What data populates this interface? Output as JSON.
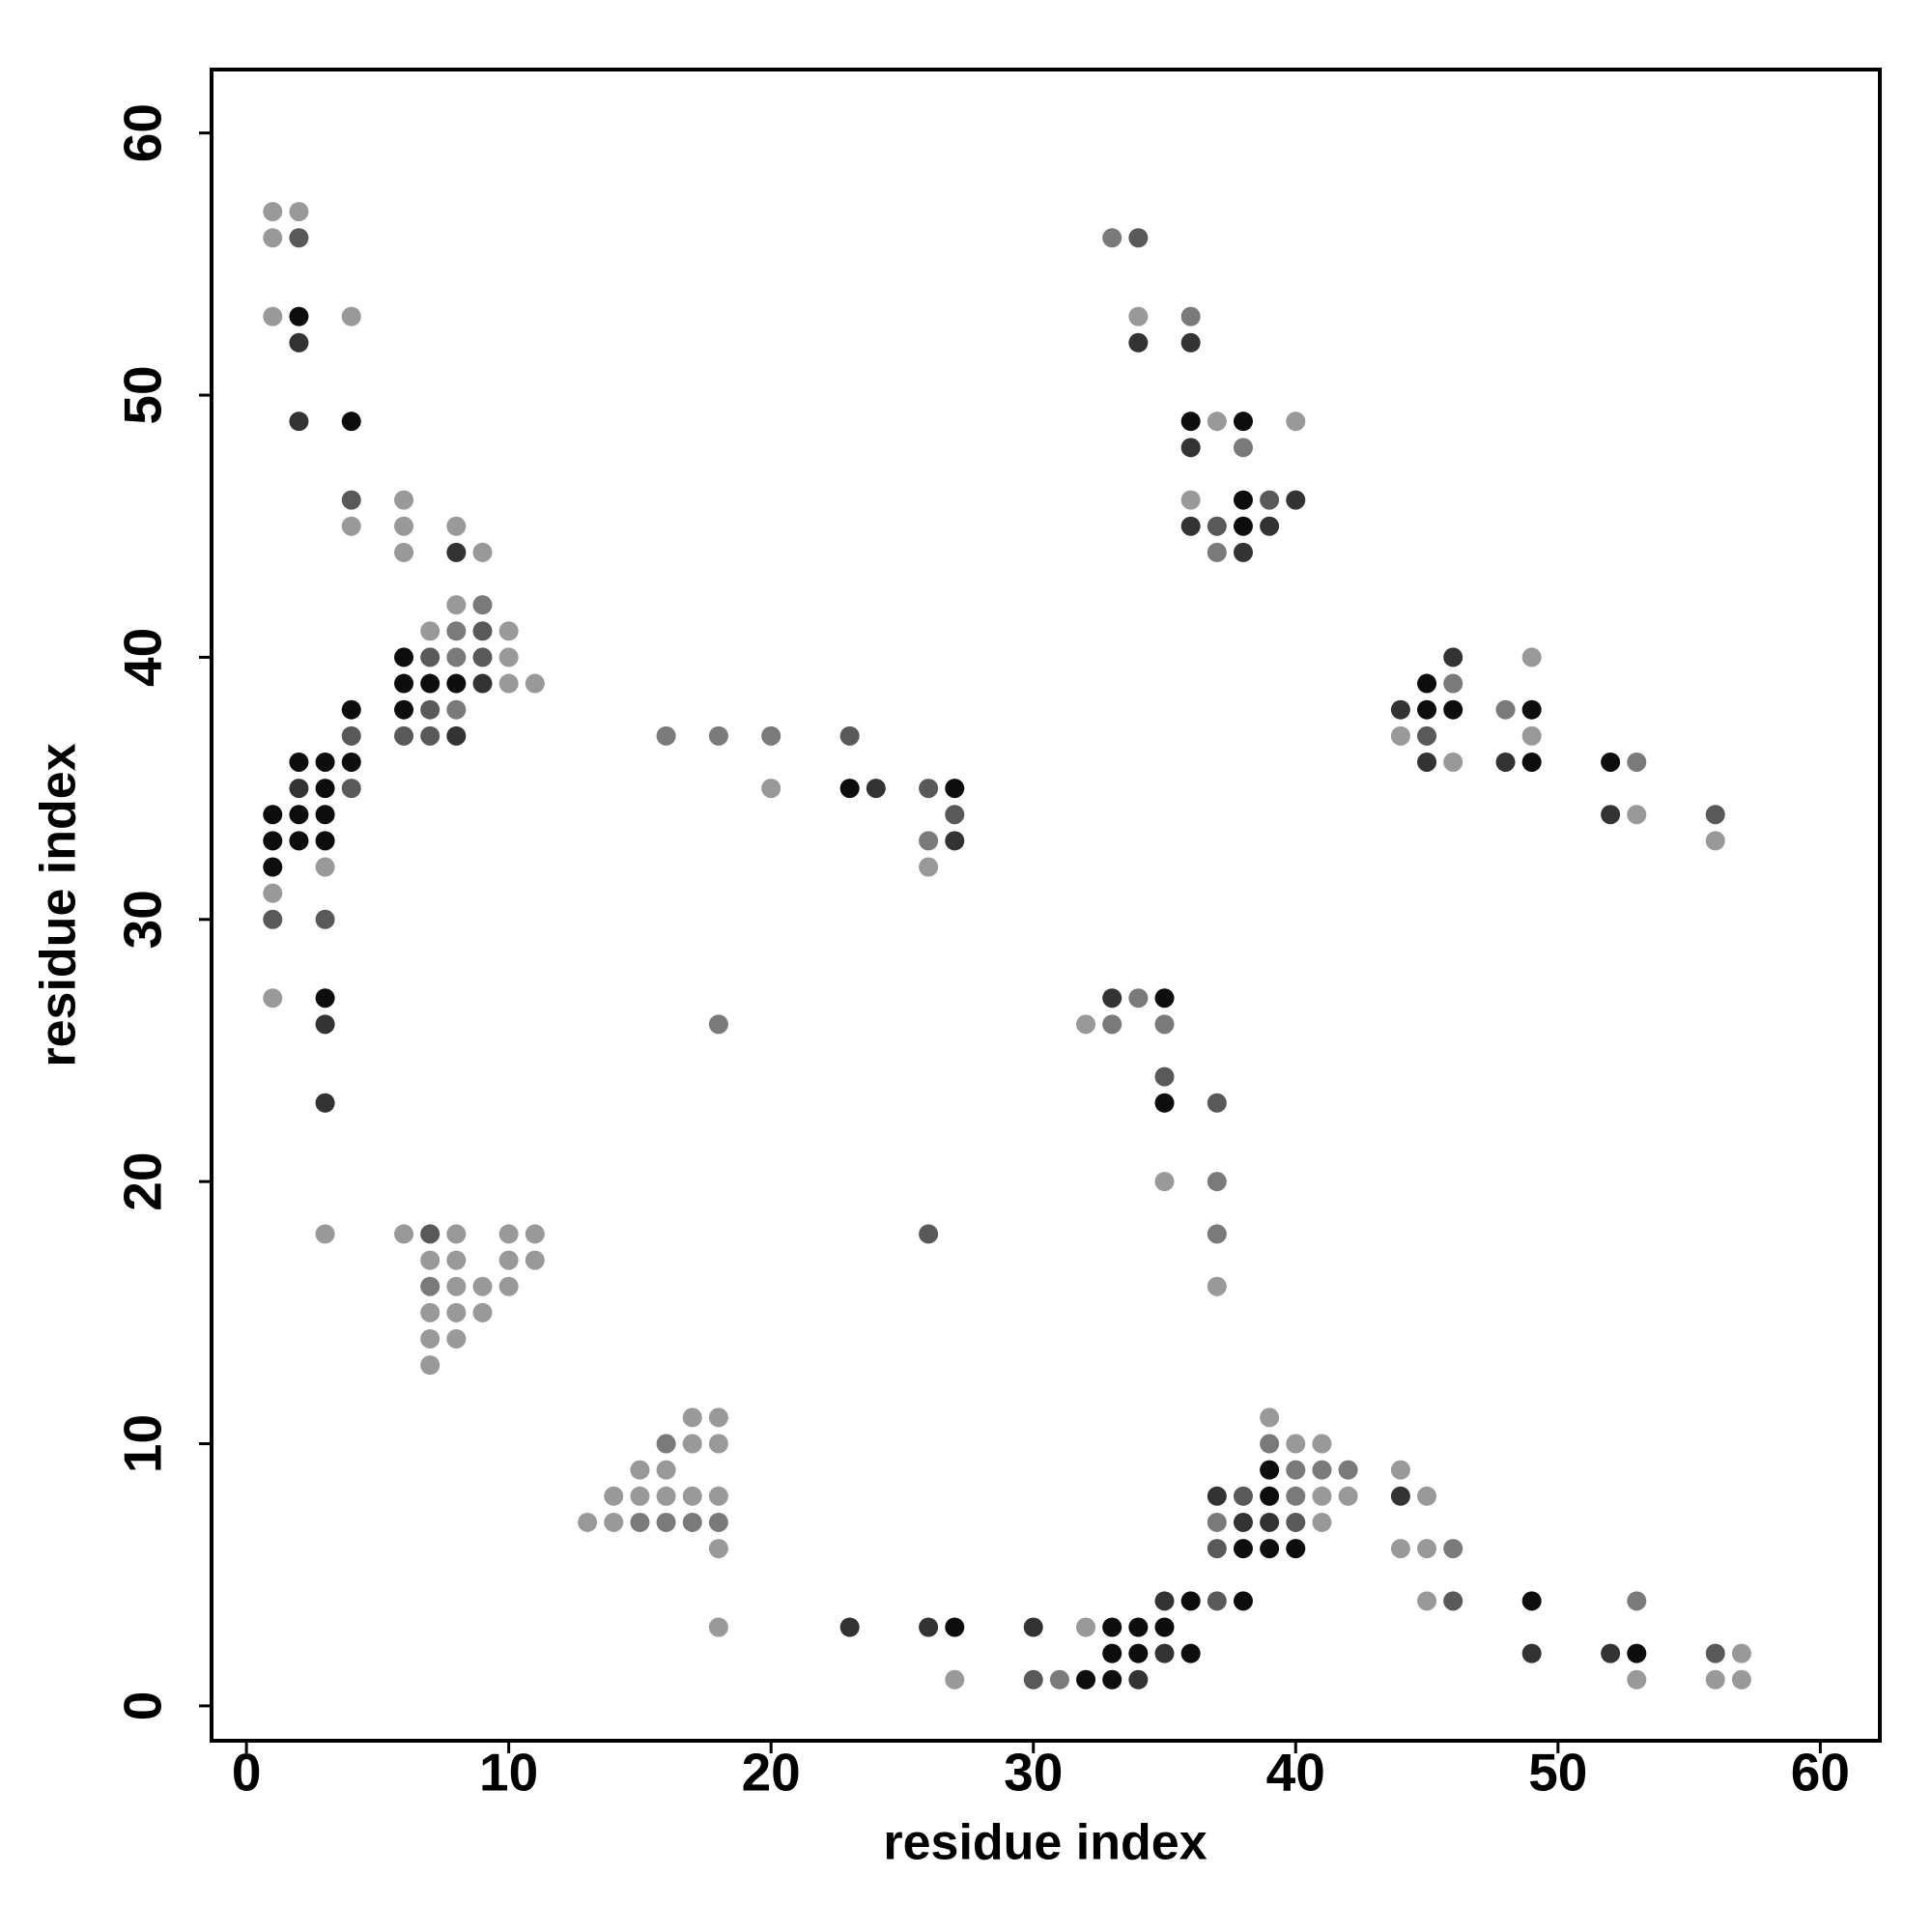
{
  "chart_data": {
    "type": "scatter",
    "x_label": "residue index",
    "y_label": "residue index",
    "xlim": [
      -1.33,
      62.27
    ],
    "ylim": [
      -1.33,
      62.42
    ],
    "xticks": [
      0,
      10,
      20,
      30,
      40,
      50,
      60
    ],
    "yticks": [
      0,
      10,
      20,
      30,
      40,
      50,
      60
    ],
    "x": [
      1,
      1,
      1,
      1,
      1,
      1,
      1,
      1,
      1,
      2,
      2,
      2,
      2,
      2,
      2,
      2,
      2,
      2,
      3,
      3,
      3,
      3,
      3,
      3,
      3,
      3,
      3,
      3,
      4,
      4,
      4,
      4,
      4,
      4,
      4,
      4,
      6,
      6,
      6,
      6,
      6,
      6,
      6,
      6,
      7,
      7,
      7,
      7,
      7,
      7,
      7,
      7,
      7,
      7,
      7,
      8,
      8,
      8,
      8,
      8,
      8,
      8,
      8,
      8,
      8,
      8,
      8,
      8,
      9,
      9,
      9,
      9,
      9,
      9,
      9,
      10,
      10,
      10,
      10,
      10,
      10,
      11,
      11,
      11,
      13,
      14,
      14,
      15,
      15,
      15,
      16,
      16,
      16,
      16,
      16,
      17,
      17,
      17,
      17,
      18,
      18,
      18,
      18,
      18,
      18,
      18,
      18,
      20,
      20,
      23,
      23,
      23,
      24,
      26,
      26,
      26,
      26,
      26,
      27,
      27,
      27,
      27,
      27,
      30,
      30,
      31,
      32,
      32,
      32,
      33,
      33,
      33,
      33,
      33,
      33,
      34,
      34,
      34,
      34,
      34,
      34,
      34,
      35,
      35,
      35,
      35,
      35,
      35,
      35,
      35,
      36,
      36,
      36,
      36,
      36,
      36,
      36,
      36,
      37,
      37,
      37,
      37,
      37,
      37,
      37,
      37,
      37,
      37,
      37,
      38,
      38,
      38,
      38,
      38,
      38,
      38,
      38,
      38,
      39,
      39,
      39,
      39,
      39,
      39,
      39,
      39,
      40,
      40,
      40,
      40,
      40,
      40,
      40,
      41,
      41,
      41,
      41,
      42,
      42,
      44,
      44,
      44,
      44,
      44,
      45,
      45,
      45,
      45,
      45,
      45,
      45,
      46,
      46,
      46,
      46,
      46,
      46,
      48,
      48,
      49,
      49,
      49,
      49,
      49,
      49,
      52,
      52,
      52,
      53,
      53,
      53,
      53,
      53,
      56,
      56,
      56,
      56,
      57,
      57
    ],
    "values": [
      57,
      56,
      53,
      34,
      33,
      32,
      31,
      30,
      27,
      57,
      56,
      53,
      52,
      49,
      36,
      35,
      34,
      33,
      36,
      35,
      34,
      33,
      32,
      30,
      27,
      26,
      23,
      18,
      53,
      49,
      46,
      45,
      38,
      37,
      36,
      35,
      46,
      45,
      44,
      40,
      39,
      38,
      37,
      18,
      41,
      40,
      39,
      38,
      37,
      18,
      17,
      16,
      15,
      14,
      13,
      45,
      44,
      42,
      41,
      40,
      39,
      38,
      37,
      18,
      17,
      16,
      15,
      14,
      44,
      42,
      41,
      40,
      39,
      16,
      15,
      41,
      40,
      39,
      18,
      17,
      16,
      39,
      18,
      17,
      7,
      8,
      7,
      9,
      8,
      7,
      37,
      10,
      9,
      8,
      7,
      11,
      10,
      8,
      7,
      37,
      26,
      11,
      10,
      8,
      7,
      6,
      3,
      37,
      35,
      37,
      35,
      3,
      35,
      35,
      33,
      32,
      18,
      3,
      35,
      34,
      33,
      3,
      1,
      3,
      1,
      1,
      26,
      3,
      1,
      56,
      27,
      26,
      3,
      2,
      1,
      56,
      53,
      52,
      27,
      3,
      2,
      1,
      27,
      26,
      24,
      23,
      20,
      4,
      3,
      2,
      53,
      52,
      49,
      48,
      46,
      45,
      4,
      2,
      49,
      45,
      44,
      23,
      20,
      18,
      16,
      8,
      7,
      6,
      4,
      49,
      48,
      46,
      45,
      44,
      8,
      7,
      6,
      4,
      46,
      45,
      11,
      10,
      9,
      8,
      7,
      6,
      49,
      46,
      10,
      9,
      8,
      7,
      6,
      10,
      9,
      8,
      7,
      9,
      8,
      38,
      37,
      9,
      8,
      6,
      39,
      38,
      37,
      36,
      8,
      6,
      4,
      40,
      39,
      38,
      36,
      6,
      4,
      38,
      36,
      40,
      38,
      37,
      36,
      4,
      2,
      36,
      34,
      2,
      36,
      34,
      4,
      2,
      1,
      34,
      33,
      2,
      1,
      2,
      1
    ],
    "colors": [
      "#999999",
      "#999999",
      "#999999",
      "#0d0d0d",
      "#0d0d0d",
      "#0d0d0d",
      "#999999",
      "#595959",
      "#999999",
      "#999999",
      "#595959",
      "#0d0d0d",
      "#333333",
      "#333333",
      "#0d0d0d",
      "#333333",
      "#0d0d0d",
      "#0d0d0d",
      "#0d0d0d",
      "#0d0d0d",
      "#0d0d0d",
      "#0d0d0d",
      "#999999",
      "#595959",
      "#0d0d0d",
      "#333333",
      "#333333",
      "#999999",
      "#999999",
      "#0d0d0d",
      "#595959",
      "#999999",
      "#0d0d0d",
      "#595959",
      "#0d0d0d",
      "#595959",
      "#999999",
      "#999999",
      "#999999",
      "#0d0d0d",
      "#0d0d0d",
      "#0d0d0d",
      "#595959",
      "#999999",
      "#999999",
      "#595959",
      "#0d0d0d",
      "#595959",
      "#595959",
      "#595959",
      "#999999",
      "#7a7a7a",
      "#999999",
      "#999999",
      "#999999",
      "#999999",
      "#333333",
      "#999999",
      "#7a7a7a",
      "#7a7a7a",
      "#0d0d0d",
      "#7a7a7a",
      "#333333",
      "#999999",
      "#999999",
      "#999999",
      "#999999",
      "#999999",
      "#999999",
      "#7a7a7a",
      "#595959",
      "#595959",
      "#333333",
      "#999999",
      "#999999",
      "#999999",
      "#999999",
      "#999999",
      "#999999",
      "#999999",
      "#999999",
      "#999999",
      "#999999",
      "#999999",
      "#999999",
      "#999999",
      "#999999",
      "#999999",
      "#999999",
      "#7a7a7a",
      "#7a7a7a",
      "#7a7a7a",
      "#999999",
      "#999999",
      "#7a7a7a",
      "#999999",
      "#999999",
      "#999999",
      "#7a7a7a",
      "#7a7a7a",
      "#7a7a7a",
      "#999999",
      "#999999",
      "#999999",
      "#7a7a7a",
      "#999999",
      "#999999",
      "#7a7a7a",
      "#999999",
      "#595959",
      "#0d0d0d",
      "#333333",
      "#333333",
      "#595959",
      "#7a7a7a",
      "#999999",
      "#595959",
      "#333333",
      "#0d0d0d",
      "#595959",
      "#333333",
      "#0d0d0d",
      "#999999",
      "#333333",
      "#595959",
      "#7a7a7a",
      "#999999",
      "#999999",
      "#0d0d0d",
      "#7a7a7a",
      "#333333",
      "#7a7a7a",
      "#0d0d0d",
      "#0d0d0d",
      "#0d0d0d",
      "#595959",
      "#999999",
      "#333333",
      "#7a7a7a",
      "#0d0d0d",
      "#0d0d0d",
      "#333333",
      "#0d0d0d",
      "#7a7a7a",
      "#595959",
      "#0d0d0d",
      "#999999",
      "#333333",
      "#0d0d0d",
      "#333333",
      "#7a7a7a",
      "#333333",
      "#0d0d0d",
      "#333333",
      "#999999",
      "#333333",
      "#0d0d0d",
      "#0d0d0d",
      "#999999",
      "#595959",
      "#7a7a7a",
      "#595959",
      "#7a7a7a",
      "#7a7a7a",
      "#999999",
      "#333333",
      "#7a7a7a",
      "#595959",
      "#595959",
      "#0d0d0d",
      "#7a7a7a",
      "#0d0d0d",
      "#0d0d0d",
      "#333333",
      "#595959",
      "#333333",
      "#0d0d0d",
      "#0d0d0d",
      "#595959",
      "#333333",
      "#999999",
      "#7a7a7a",
      "#0d0d0d",
      "#0d0d0d",
      "#333333",
      "#0d0d0d",
      "#999999",
      "#333333",
      "#999999",
      "#7a7a7a",
      "#7a7a7a",
      "#595959",
      "#0d0d0d",
      "#999999",
      "#7a7a7a",
      "#999999",
      "#999999",
      "#7a7a7a",
      "#999999",
      "#333333",
      "#999999",
      "#999999",
      "#333333",
      "#999999",
      "#0d0d0d",
      "#0d0d0d",
      "#595959",
      "#333333",
      "#999999",
      "#999999",
      "#999999",
      "#333333",
      "#7a7a7a",
      "#0d0d0d",
      "#999999",
      "#7a7a7a",
      "#595959",
      "#7a7a7a",
      "#333333",
      "#999999",
      "#0d0d0d",
      "#999999",
      "#0d0d0d",
      "#0d0d0d",
      "#333333",
      "#0d0d0d",
      "#333333",
      "#333333",
      "#7a7a7a",
      "#999999",
      "#7a7a7a",
      "#0d0d0d",
      "#999999",
      "#595959",
      "#999999",
      "#595959",
      "#999999",
      "#999999",
      "#999999"
    ]
  }
}
